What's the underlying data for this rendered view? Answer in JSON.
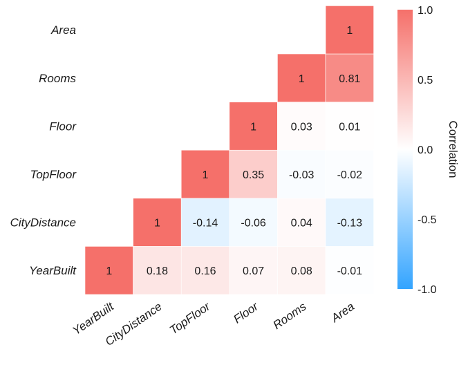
{
  "chart_data": {
    "type": "heatmap",
    "variables": [
      "YearBuilt",
      "CityDistance",
      "TopFloor",
      "Floor",
      "Rooms",
      "Area"
    ],
    "matrix": [
      [
        1,
        0.18,
        0.16,
        0.07,
        0.08,
        -0.01
      ],
      [
        null,
        1,
        -0.14,
        -0.06,
        0.04,
        -0.13
      ],
      [
        null,
        null,
        1,
        0.35,
        -0.03,
        -0.02
      ],
      [
        null,
        null,
        null,
        1,
        0.03,
        0.01
      ],
      [
        null,
        null,
        null,
        null,
        1,
        0.81
      ],
      [
        null,
        null,
        null,
        null,
        null,
        1
      ]
    ],
    "layout": "lower-triangle with YearBuilt at bottom-left, Area at top-right",
    "color_scale": {
      "min": -1.0,
      "mid": 0.0,
      "max": 1.0,
      "low_color": "#33a4ff",
      "mid_color": "#ffffff",
      "high_color": "#f5706a"
    },
    "legend": {
      "title": "Correlation",
      "ticks": [
        "1.0",
        "0.5",
        "0.0",
        "-0.5",
        "-1.0"
      ],
      "tick_values": [
        1.0,
        0.5,
        0.0,
        -0.5,
        -1.0
      ],
      "placement": "right"
    }
  }
}
